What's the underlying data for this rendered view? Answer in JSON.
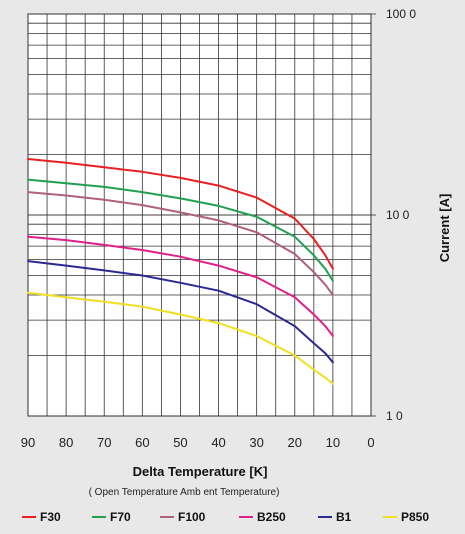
{
  "chart_data": {
    "type": "line",
    "xlabel": "Delta Temperature [K]",
    "xnote": "(  Open Temperature   Amb ent Temperature)",
    "ylabel": "Current [A]",
    "x_ticks": [
      "90",
      "80",
      "70",
      "60",
      "50",
      "40",
      "30",
      "20",
      "10",
      "0"
    ],
    "y_ticks": [
      "100 0",
      "10 0",
      "1 0"
    ],
    "xlim": [
      90,
      0
    ],
    "ylim": [
      1,
      100
    ],
    "yscale": "log",
    "grid": true,
    "legend_position": "bottom",
    "series": [
      {
        "name": "F30",
        "color": "#e82020",
        "x": [
          90,
          80,
          70,
          60,
          50,
          40,
          30,
          20,
          15,
          12,
          10
        ],
        "y": [
          19.0,
          18.2,
          17.3,
          16.4,
          15.3,
          14.0,
          12.2,
          9.6,
          7.6,
          6.3,
          5.4
        ]
      },
      {
        "name": "F70",
        "color": "#20a050",
        "x": [
          90,
          80,
          70,
          60,
          50,
          40,
          30,
          20,
          15,
          12,
          10
        ],
        "y": [
          15.0,
          14.4,
          13.8,
          13.0,
          12.1,
          11.1,
          9.8,
          7.8,
          6.3,
          5.4,
          4.7
        ]
      },
      {
        "name": "F100",
        "color": "#b06080",
        "x": [
          90,
          80,
          70,
          60,
          50,
          40,
          30,
          20,
          15,
          12,
          10
        ],
        "y": [
          13.0,
          12.5,
          11.9,
          11.2,
          10.3,
          9.4,
          8.2,
          6.4,
          5.2,
          4.5,
          4.0
        ]
      },
      {
        "name": "B250",
        "color": "#e0208a",
        "x": [
          90,
          80,
          70,
          60,
          50,
          40,
          30,
          20,
          15,
          12,
          10
        ],
        "y": [
          7.8,
          7.5,
          7.1,
          6.7,
          6.2,
          5.6,
          4.9,
          3.9,
          3.2,
          2.8,
          2.5
        ]
      },
      {
        "name": "B1",
        "color": "#2a2a90",
        "x": [
          90,
          80,
          70,
          60,
          50,
          40,
          30,
          20,
          15,
          12,
          10
        ],
        "y": [
          5.9,
          5.6,
          5.3,
          5.0,
          4.6,
          4.2,
          3.6,
          2.8,
          2.3,
          2.05,
          1.85
        ]
      },
      {
        "name": "P850",
        "color": "#f0e020",
        "x": [
          90,
          80,
          70,
          60,
          50,
          40,
          30,
          20,
          15,
          12,
          10
        ],
        "y": [
          4.1,
          3.9,
          3.7,
          3.5,
          3.2,
          2.9,
          2.5,
          2.0,
          1.7,
          1.55,
          1.45
        ]
      }
    ]
  }
}
